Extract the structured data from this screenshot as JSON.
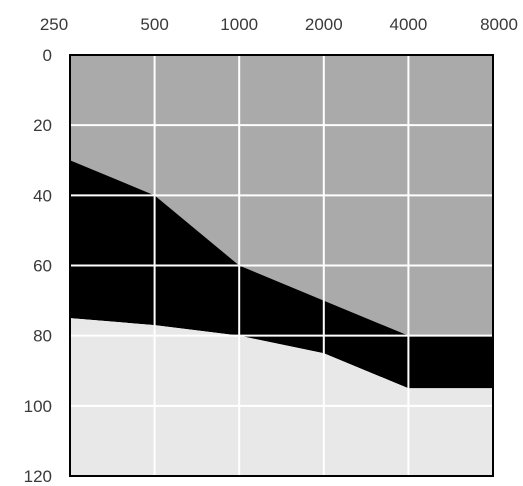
{
  "chart_data": {
    "type": "area",
    "x_categories": [
      250,
      500,
      1000,
      2000,
      4000,
      8000
    ],
    "x_tick_labels": [
      "250",
      "500",
      "1000",
      "2000",
      "4000",
      "8000"
    ],
    "y_tick_values": [
      0,
      20,
      40,
      60,
      80,
      100,
      120
    ],
    "y_tick_labels": [
      "0",
      "20",
      "40",
      "60",
      "80",
      "100",
      "120"
    ],
    "ylim": [
      0,
      120
    ],
    "y_inverted": true,
    "x_axis_position": "top",
    "grid": true,
    "legend": "none",
    "series": [
      {
        "values": [
          30,
          40,
          60,
          70,
          80,
          80
        ],
        "color": "#aaaaaa"
      },
      {
        "values": [
          75,
          77,
          80,
          85,
          95,
          95
        ],
        "color": "#000000"
      }
    ],
    "below_fill_color": "#e8e8e8",
    "grid_color": "#ffffff",
    "frame_color": "#000000"
  }
}
